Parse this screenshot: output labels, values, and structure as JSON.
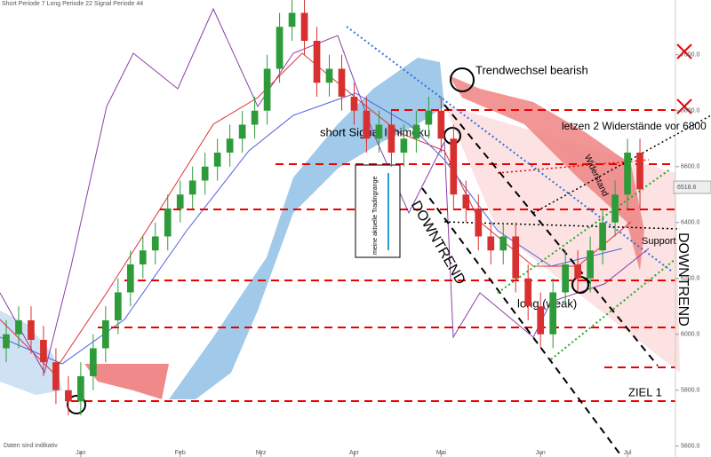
{
  "chart_data": {
    "type": "candlestick",
    "header": "Short Periode  7    Long Periode  22    Signal Periode  44",
    "footer": "Daten sind indikativ",
    "annotations": [
      "Trendwechsel bearish",
      "short Signal Ichimoku",
      "letzen 2 Widerstände vor 6800",
      "Widerstand",
      "meine aktuelle Tradingrange",
      "DOWNTREND",
      "DOWNTREND",
      "Support",
      "long (weak)",
      "ZIEL 1"
    ],
    "up_color": "#2e9b3a",
    "down_color": "#d83030",
    "x": [
      0,
      1,
      2,
      3,
      4,
      5,
      6,
      7,
      8,
      9,
      10,
      11,
      12,
      13,
      14,
      15,
      16,
      17,
      18,
      19,
      20,
      21,
      22,
      23,
      24,
      25,
      26,
      27,
      28,
      29,
      30,
      31,
      32,
      33,
      34,
      35,
      36,
      37,
      38,
      39,
      40,
      41,
      42,
      43,
      44,
      45,
      46,
      47,
      48,
      49,
      50,
      51
    ],
    "open": [
      5950,
      6000,
      6050,
      5980,
      5900,
      5800,
      5760,
      5850,
      5950,
      6050,
      6150,
      6250,
      6300,
      6350,
      6450,
      6500,
      6550,
      6600,
      6650,
      6700,
      6750,
      6800,
      6950,
      7100,
      7150,
      7050,
      6900,
      6950,
      6850,
      6800,
      6700,
      6750,
      6650,
      6700,
      6750,
      6800,
      6700,
      6500,
      6450,
      6350,
      6300,
      6350,
      6200,
      6100,
      6000,
      6150,
      6250,
      6200,
      6300,
      6400,
      6500,
      6650
    ],
    "high": [
      6050,
      6100,
      6100,
      6030,
      5950,
      5850,
      5900,
      6000,
      6100,
      6200,
      6300,
      6350,
      6400,
      6500,
      6550,
      6600,
      6650,
      6700,
      6750,
      6800,
      6850,
      7000,
      7150,
      7200,
      7200,
      7100,
      7000,
      7000,
      6900,
      6850,
      6800,
      6800,
      6750,
      6800,
      6850,
      6850,
      6750,
      6550,
      6500,
      6400,
      6400,
      6400,
      6250,
      6150,
      6200,
      6300,
      6300,
      6350,
      6450,
      6550,
      6700,
      6700
    ],
    "low": [
      5900,
      5950,
      5930,
      5850,
      5750,
      5710,
      5710,
      5800,
      5900,
      6000,
      6100,
      6200,
      6250,
      6300,
      6400,
      6450,
      6500,
      6550,
      6600,
      6650,
      6700,
      6750,
      6900,
      7050,
      7000,
      6850,
      6850,
      6800,
      6750,
      6650,
      6650,
      6600,
      6600,
      6650,
      6700,
      6650,
      6450,
      6400,
      6300,
      6250,
      6250,
      6150,
      6050,
      5950,
      5950,
      6100,
      6150,
      6150,
      6250,
      6350,
      6450,
      6450
    ],
    "close": [
      6000,
      6050,
      5980,
      5900,
      5800,
      5760,
      5850,
      5950,
      6050,
      6150,
      6250,
      6300,
      6350,
      6450,
      6500,
      6550,
      6600,
      6650,
      6700,
      6750,
      6800,
      6950,
      7100,
      7150,
      7050,
      6900,
      6950,
      6850,
      6800,
      6700,
      6750,
      6650,
      6700,
      6750,
      6800,
      6700,
      6500,
      6450,
      6350,
      6300,
      6350,
      6200,
      6100,
      6000,
      6150,
      6250,
      6200,
      6300,
      6400,
      6500,
      6650,
      6518.6
    ],
    "xlim": [
      -0.5,
      53.5
    ],
    "xticks": [
      {
        "value": 6,
        "label": "Jan"
      },
      {
        "value": 14,
        "label": "Feb"
      },
      {
        "value": 20.5,
        "label": "Mrz"
      },
      {
        "value": 28,
        "label": "Apr"
      },
      {
        "value": 35,
        "label": "Mai"
      },
      {
        "value": 43,
        "label": "Jun"
      },
      {
        "value": 50,
        "label": "Jul"
      }
    ],
    "ylim": [
      5580,
      7196
    ],
    "yticks": [
      {
        "value": 5600,
        "label": "5600.0"
      },
      {
        "value": 5800,
        "label": "5800.0"
      },
      {
        "value": 6000,
        "label": "6000.0"
      },
      {
        "value": 6200,
        "label": "6200.0"
      },
      {
        "value": 6400,
        "label": "6400.0"
      },
      {
        "value": 6600,
        "label": "6600.0"
      },
      {
        "value": 6800,
        "label": "6800.0"
      },
      {
        "value": 7000,
        "label": "7000.0"
      }
    ]
  }
}
